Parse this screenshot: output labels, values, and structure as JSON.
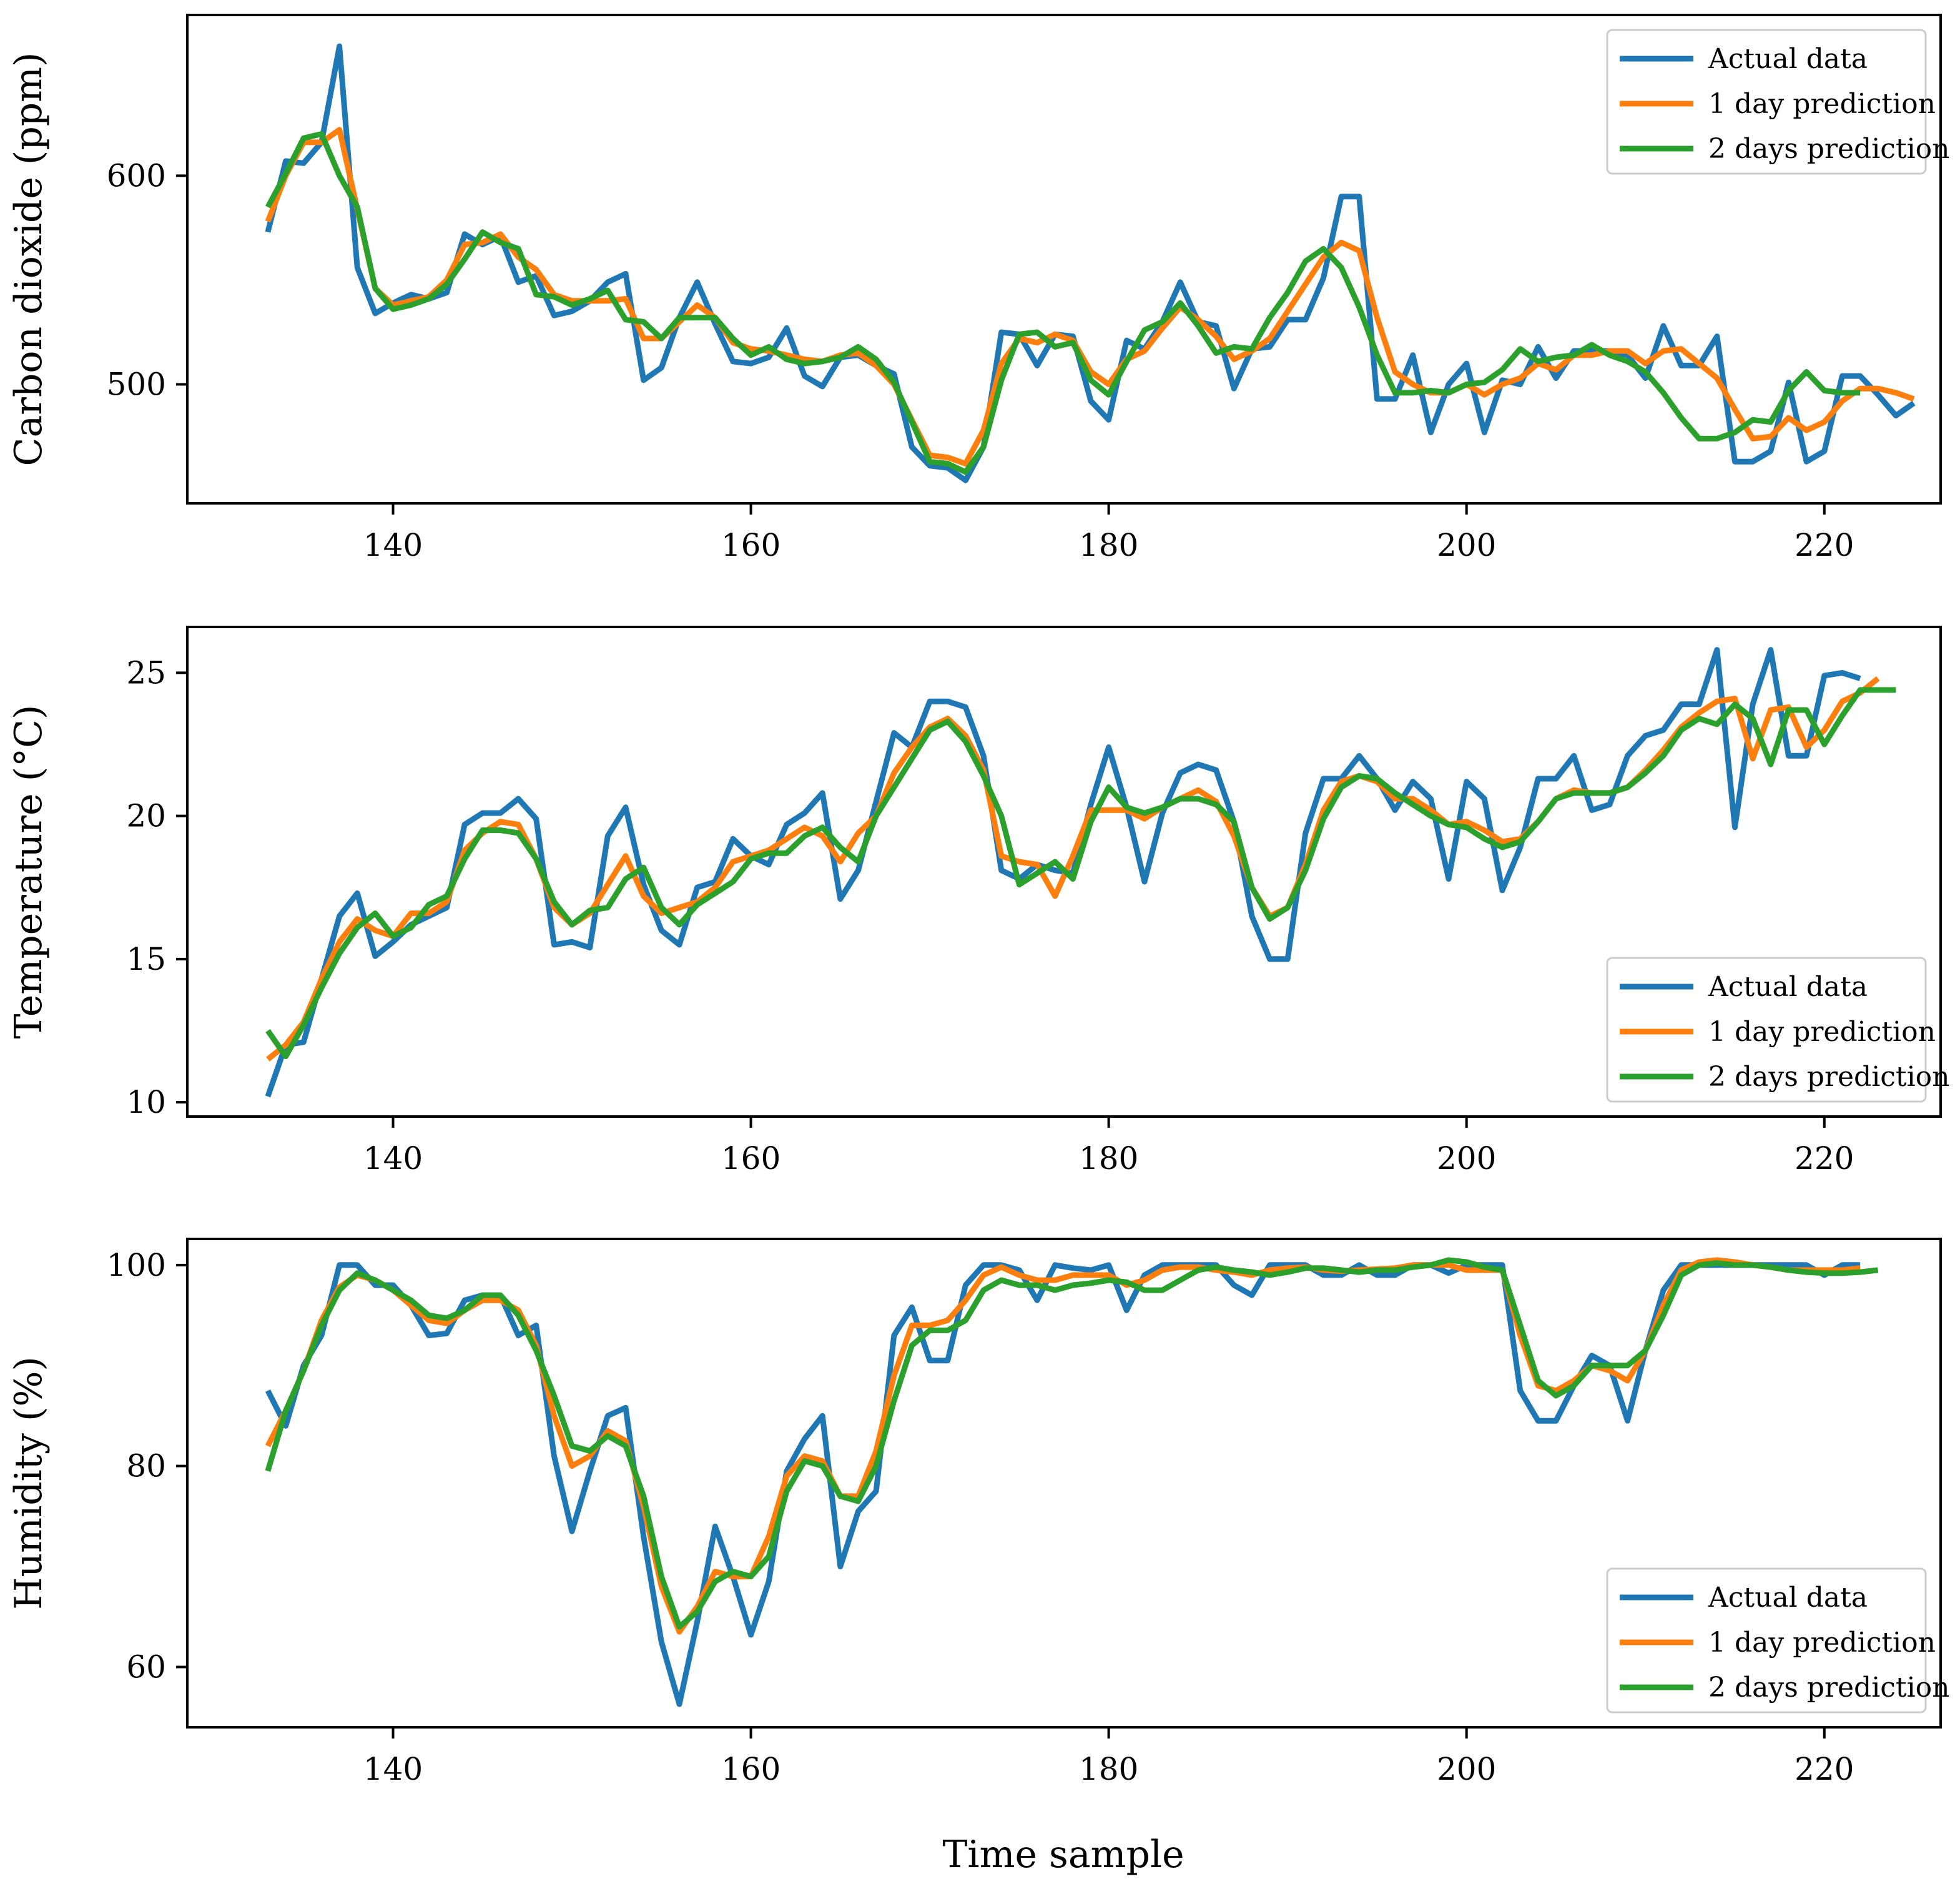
{
  "figure": {
    "xlabel": "Time sample"
  },
  "colors": {
    "actual": "#1f77b4",
    "pred1": "#ff7f0e",
    "pred2": "#2ca02c",
    "axes": "#000000",
    "legend_border": "#cccccc"
  },
  "legend": {
    "actual": "Actual data",
    "pred1": "1 day prediction",
    "pred2": "2 days prediction"
  },
  "chart_data": [
    {
      "type": "line",
      "ylabel": "Carbon dioxide (ppm)",
      "xlim": [
        128.5,
        226.5
      ],
      "ylim": [
        443,
        677
      ],
      "xticks": [
        140,
        160,
        180,
        200,
        220
      ],
      "yticks": [
        500,
        600
      ],
      "legend_position": "top-right",
      "x_start": 133,
      "series": [
        {
          "key": "actual",
          "name": "Actual data",
          "values": [
            573,
            607,
            606,
            616,
            662,
            556,
            534,
            539,
            543,
            541,
            544,
            572,
            567,
            571,
            549,
            552,
            533,
            535,
            540,
            549,
            553,
            502,
            508,
            532,
            549,
            529,
            511,
            510,
            513,
            527,
            504,
            499,
            513,
            514,
            509,
            505,
            470,
            461,
            460,
            454,
            470,
            525,
            524,
            509,
            524,
            523,
            492,
            483,
            521,
            517,
            530,
            549,
            530,
            528,
            498,
            517,
            518,
            531,
            531,
            551,
            590,
            590,
            493,
            493,
            514,
            477,
            500,
            510,
            477,
            502,
            500,
            518,
            503,
            516,
            516,
            516,
            514,
            503,
            528,
            509,
            509,
            523,
            463,
            463,
            468,
            501,
            463,
            468,
            504,
            504,
            495,
            485,
            491
          ]
        },
        {
          "key": "pred1",
          "name": "1 day prediction",
          "values": [
            578,
            600,
            616,
            616,
            622,
            584,
            546,
            538,
            540,
            542,
            550,
            567,
            568,
            572,
            561,
            555,
            543,
            540,
            540,
            540,
            541,
            522,
            522,
            530,
            538,
            532,
            520,
            517,
            516,
            514,
            512,
            511,
            514,
            515,
            509,
            500,
            483,
            466,
            465,
            462,
            478,
            510,
            522,
            520,
            524,
            521,
            506,
            500,
            512,
            516,
            527,
            537,
            531,
            523,
            512,
            516,
            522,
            535,
            548,
            561,
            568,
            564,
            532,
            506,
            500,
            496,
            496,
            500,
            495,
            500,
            503,
            510,
            507,
            514,
            514,
            516,
            516,
            510,
            516,
            517,
            510,
            503,
            488,
            474,
            475,
            484,
            478,
            482,
            492,
            498,
            498,
            496,
            493
          ]
        },
        {
          "key": "pred2",
          "name": "2 days prediction",
          "values": [
            585,
            601,
            618,
            620,
            600,
            585,
            546,
            536,
            538,
            541,
            548,
            560,
            573,
            568,
            565,
            543,
            542,
            538,
            541,
            545,
            531,
            530,
            522,
            532,
            532,
            532,
            522,
            514,
            518,
            512,
            510,
            511,
            513,
            518,
            512,
            501,
            482,
            463,
            462,
            458,
            470,
            502,
            524,
            525,
            518,
            520,
            502,
            495,
            511,
            526,
            530,
            539,
            528,
            515,
            518,
            517,
            532,
            544,
            559,
            565,
            556,
            537,
            514,
            496,
            496,
            497,
            496,
            500,
            501,
            507,
            517,
            511,
            513,
            514,
            519,
            514,
            511,
            506,
            496,
            484,
            474,
            474,
            477,
            483,
            482,
            497,
            506,
            497,
            496,
            496
          ]
        }
      ]
    },
    {
      "type": "line",
      "ylabel": "Temperature (°C)",
      "xlim": [
        128.5,
        226.5
      ],
      "ylim": [
        9.5,
        26.6
      ],
      "xticks": [
        140,
        160,
        180,
        200,
        220
      ],
      "yticks": [
        10,
        15,
        20,
        25
      ],
      "legend_position": "bottom-right",
      "x_start": 133,
      "series": [
        {
          "key": "actual",
          "name": "Actual data",
          "values": [
            10.2,
            12.0,
            12.1,
            14.3,
            16.5,
            17.3,
            15.1,
            15.6,
            16.2,
            16.5,
            16.8,
            19.7,
            20.1,
            20.1,
            20.6,
            19.9,
            15.5,
            15.6,
            15.4,
            19.3,
            20.3,
            17.6,
            16.0,
            15.5,
            17.5,
            17.7,
            19.2,
            18.6,
            18.3,
            19.7,
            20.1,
            20.8,
            17.1,
            18.1,
            20.5,
            22.9,
            22.4,
            24.0,
            24.0,
            23.8,
            22.1,
            18.1,
            17.8,
            18.3,
            18.1,
            18.0,
            20.4,
            22.4,
            20.3,
            17.7,
            20.1,
            21.5,
            21.8,
            21.6,
            19.8,
            16.5,
            15.0,
            15.0,
            19.4,
            21.3,
            21.3,
            22.1,
            21.3,
            20.2,
            21.2,
            20.6,
            17.8,
            21.2,
            20.6,
            17.4,
            18.9,
            21.3,
            21.3,
            22.1,
            20.2,
            20.4,
            22.1,
            22.8,
            23.0,
            23.9,
            23.9,
            25.8,
            19.6,
            23.9,
            25.8,
            22.1,
            22.1,
            24.9,
            25.0,
            24.8
          ]
        },
        {
          "key": "pred1",
          "name": "1 day prediction",
          "values": [
            11.5,
            12.0,
            12.8,
            14.3,
            15.6,
            16.4,
            16.0,
            15.8,
            16.6,
            16.6,
            17.0,
            18.8,
            19.4,
            19.8,
            19.7,
            18.5,
            16.8,
            16.2,
            16.6,
            17.6,
            18.6,
            17.2,
            16.6,
            16.8,
            17.0,
            17.5,
            18.4,
            18.6,
            18.8,
            19.2,
            19.6,
            19.3,
            18.4,
            19.4,
            20.0,
            21.5,
            22.4,
            23.1,
            23.4,
            22.8,
            21.6,
            18.6,
            18.4,
            18.3,
            17.2,
            18.6,
            20.2,
            20.2,
            20.2,
            19.9,
            20.3,
            20.6,
            20.9,
            20.5,
            19.3,
            17.5,
            16.5,
            16.8,
            18.3,
            20.2,
            21.2,
            21.4,
            21.2,
            20.6,
            20.6,
            20.2,
            19.7,
            19.8,
            19.5,
            19.1,
            19.2,
            19.8,
            20.6,
            20.9,
            20.8,
            20.8,
            21.0,
            21.6,
            22.3,
            23.1,
            23.6,
            24.0,
            24.1,
            22.0,
            23.7,
            23.8,
            22.4,
            23.0,
            24.0,
            24.3,
            24.8
          ]
        },
        {
          "key": "pred2",
          "name": "2 days prediction",
          "values": [
            12.5,
            11.6,
            12.7,
            14.0,
            15.2,
            16.1,
            16.6,
            15.8,
            16.1,
            16.9,
            17.2,
            18.5,
            19.5,
            19.5,
            19.4,
            18.5,
            17.0,
            16.2,
            16.7,
            16.8,
            17.8,
            18.2,
            16.8,
            16.2,
            16.9,
            17.3,
            17.7,
            18.5,
            18.7,
            18.7,
            19.3,
            19.6,
            18.9,
            18.4,
            20.0,
            21.0,
            22.0,
            23.0,
            23.3,
            22.6,
            21.4,
            20.0,
            17.6,
            18.0,
            18.4,
            17.8,
            19.8,
            21.0,
            20.3,
            20.1,
            20.3,
            20.6,
            20.6,
            20.4,
            19.8,
            17.5,
            16.4,
            16.8,
            18.1,
            19.9,
            21.0,
            21.4,
            21.3,
            20.8,
            20.4,
            20.0,
            19.7,
            19.6,
            19.2,
            18.9,
            19.1,
            19.8,
            20.6,
            20.8,
            20.8,
            20.8,
            21.0,
            21.5,
            22.1,
            23.0,
            23.4,
            23.2,
            23.9,
            23.4,
            21.8,
            23.7,
            23.7,
            22.5,
            23.5,
            24.4,
            24.4,
            24.4
          ]
        }
      ]
    },
    {
      "type": "line",
      "ylabel": "Humidity (%)",
      "xlim": [
        128.5,
        226.5
      ],
      "ylim": [
        54,
        102.6
      ],
      "xticks": [
        140,
        160,
        180,
        200,
        220
      ],
      "yticks": [
        60,
        80,
        100
      ],
      "legend_position": "bottom-right",
      "x_start": 133,
      "series": [
        {
          "key": "actual",
          "name": "Actual data",
          "values": [
            87.5,
            84.0,
            90.0,
            93.0,
            100.0,
            100.0,
            98.0,
            98.0,
            96.0,
            93.0,
            93.2,
            96.5,
            97.0,
            97.0,
            93.0,
            94.0,
            81.0,
            73.5,
            79.5,
            85.0,
            85.8,
            73.0,
            62.5,
            56.3,
            64.5,
            74.0,
            69.0,
            63.2,
            68.5,
            79.5,
            82.7,
            85.0,
            70.0,
            75.5,
            77.5,
            93.0,
            95.8,
            90.5,
            90.5,
            98.0,
            100.0,
            100.0,
            99.5,
            96.5,
            100.0,
            99.7,
            99.5,
            100.0,
            95.5,
            99.0,
            100.0,
            100.0,
            100.0,
            100.0,
            98.0,
            97.0,
            100.0,
            100.0,
            100.0,
            99.0,
            99.0,
            100.0,
            99.0,
            99.0,
            100.0,
            100.0,
            99.2,
            100.0,
            100.0,
            100.0,
            87.5,
            84.5,
            84.5,
            88.0,
            91.0,
            90.0,
            84.5,
            91.5,
            97.5,
            100.0,
            100.0,
            100.0,
            100.0,
            100.0,
            100.0,
            100.0,
            100.0,
            99.0,
            100.0,
            100.0
          ]
        },
        {
          "key": "pred1",
          "name": "1 day prediction",
          "values": [
            82.0,
            85.5,
            89.5,
            94.5,
            97.8,
            99.0,
            98.5,
            97.5,
            96.0,
            94.5,
            94.2,
            95.5,
            96.5,
            96.5,
            95.5,
            92.0,
            85.0,
            80.0,
            81.0,
            83.5,
            82.5,
            76.0,
            68.0,
            63.5,
            66.0,
            69.5,
            69.0,
            69.0,
            73.0,
            79.0,
            81.0,
            80.5,
            77.0,
            77.0,
            81.5,
            89.0,
            94.0,
            94.0,
            94.5,
            96.5,
            99.0,
            99.8,
            99.0,
            98.5,
            98.5,
            99.0,
            99.0,
            99.0,
            98.0,
            98.5,
            99.5,
            99.8,
            99.8,
            99.5,
            99.3,
            99.0,
            99.5,
            99.7,
            99.8,
            99.5,
            99.4,
            99.5,
            99.6,
            99.7,
            100.0,
            100.0,
            100.0,
            99.5,
            99.5,
            99.5,
            93.0,
            88.0,
            87.5,
            88.5,
            90.0,
            89.5,
            88.5,
            91.5,
            96.0,
            99.5,
            100.3,
            100.5,
            100.3,
            100.0,
            99.8,
            99.5,
            99.5,
            99.5,
            99.5,
            99.7
          ]
        },
        {
          "key": "pred2",
          "name": "2 days prediction",
          "values": [
            79.5,
            85.5,
            89.5,
            94.0,
            97.5,
            99.2,
            98.5,
            97.5,
            96.5,
            95.0,
            94.7,
            95.5,
            97.0,
            97.0,
            95.0,
            91.5,
            87.0,
            82.0,
            81.5,
            83.0,
            82.0,
            77.0,
            69.0,
            64.0,
            65.5,
            68.5,
            69.5,
            69.0,
            71.0,
            77.5,
            80.5,
            80.0,
            77.0,
            76.5,
            80.0,
            86.5,
            92.0,
            93.5,
            93.5,
            94.5,
            97.5,
            98.5,
            98.0,
            98.0,
            97.5,
            98.0,
            98.2,
            98.5,
            98.3,
            97.5,
            97.5,
            98.5,
            99.5,
            99.8,
            99.5,
            99.3,
            99.0,
            99.3,
            99.7,
            99.7,
            99.5,
            99.3,
            99.5,
            99.5,
            99.8,
            100.0,
            100.5,
            100.3,
            99.8,
            99.5,
            94.0,
            88.5,
            87.0,
            88.0,
            90.0,
            90.0,
            90.0,
            91.5,
            95.0,
            99.0,
            100.0,
            100.2,
            100.0,
            100.0,
            99.8,
            99.5,
            99.3,
            99.2,
            99.2,
            99.3,
            99.5
          ]
        }
      ]
    }
  ]
}
